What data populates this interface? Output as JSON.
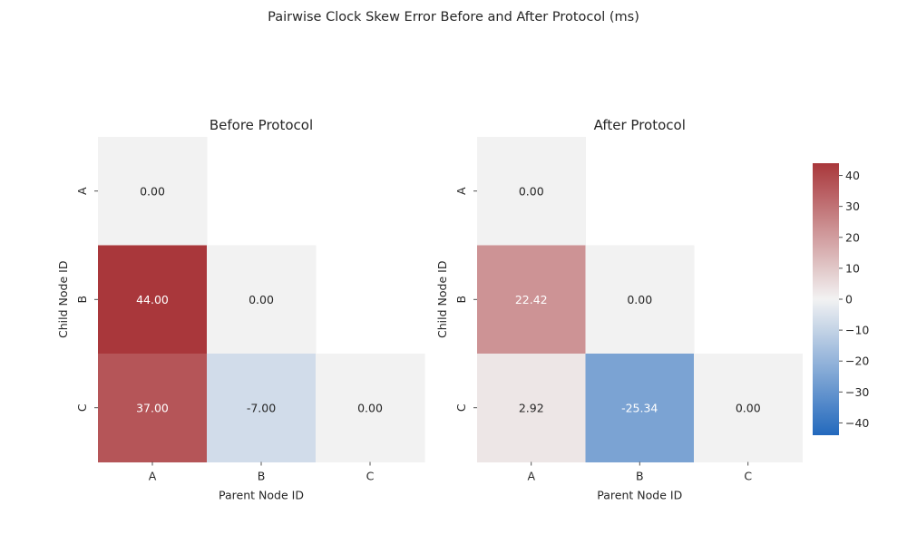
{
  "title": "Pairwise Clock Skew Error Before and After Protocol (ms)",
  "chart_data": [
    {
      "type": "heatmap",
      "title": "Before Protocol",
      "xlabel": "Parent Node ID",
      "ylabel": "Child Node ID",
      "x_categories": [
        "A",
        "B",
        "C"
      ],
      "y_categories": [
        "A",
        "B",
        "C"
      ],
      "mask": "upper-triangle",
      "cells": [
        {
          "row": "A",
          "col": "A",
          "value": 0.0,
          "label": "0.00"
        },
        {
          "row": "B",
          "col": "A",
          "value": 44.0,
          "label": "44.00"
        },
        {
          "row": "B",
          "col": "B",
          "value": 0.0,
          "label": "0.00"
        },
        {
          "row": "C",
          "col": "A",
          "value": 37.0,
          "label": "37.00"
        },
        {
          "row": "C",
          "col": "B",
          "value": -7.0,
          "label": "-7.00"
        },
        {
          "row": "C",
          "col": "C",
          "value": 0.0,
          "label": "0.00"
        }
      ]
    },
    {
      "type": "heatmap",
      "title": "After Protocol",
      "xlabel": "Parent Node ID",
      "ylabel": "Child Node ID",
      "x_categories": [
        "A",
        "B",
        "C"
      ],
      "y_categories": [
        "A",
        "B",
        "C"
      ],
      "mask": "upper-triangle",
      "cells": [
        {
          "row": "A",
          "col": "A",
          "value": 0.0,
          "label": "0.00"
        },
        {
          "row": "B",
          "col": "A",
          "value": 22.42,
          "label": "22.42"
        },
        {
          "row": "B",
          "col": "B",
          "value": 0.0,
          "label": "0.00"
        },
        {
          "row": "C",
          "col": "A",
          "value": 2.92,
          "label": "2.92"
        },
        {
          "row": "C",
          "col": "B",
          "value": -25.34,
          "label": "-25.34"
        },
        {
          "row": "C",
          "col": "C",
          "value": 0.0,
          "label": "0.00"
        }
      ]
    }
  ],
  "colorbar": {
    "colormap": "vlag",
    "vmin": -44,
    "vmax": 44,
    "ticks": [
      40,
      30,
      20,
      10,
      0,
      -10,
      -20,
      -30,
      -40
    ],
    "tick_labels": [
      "40",
      "30",
      "20",
      "10",
      "0",
      "−10",
      "−20",
      "−30",
      "−40"
    ],
    "color_low": "#2369bd",
    "color_mid": "#f2f2f2",
    "color_high": "#a9373b"
  }
}
